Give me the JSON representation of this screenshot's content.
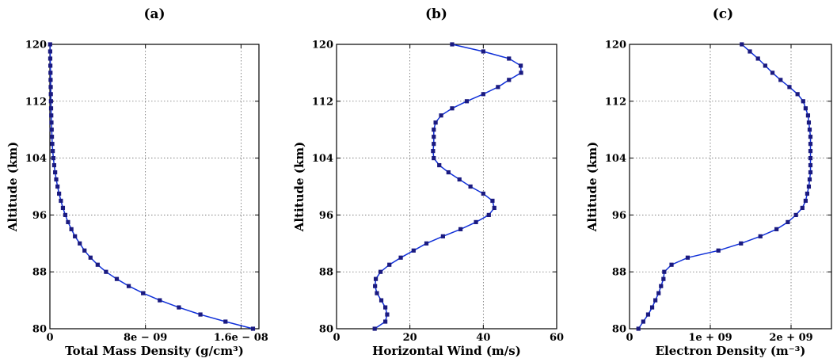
{
  "chart_data": [
    {
      "type": "line",
      "title": "(a)",
      "xlabel": "Total Mass Density (g/cm³)",
      "ylabel": "Altitude (km)",
      "xlim": [
        0,
        1.75e-08
      ],
      "ylim": [
        80,
        120
      ],
      "xticks": [
        0,
        8e-09,
        1.6e-08
      ],
      "xtick_labels": [
        "0",
        "8e − 09",
        "1.6e − 08"
      ],
      "yticks": [
        80,
        88,
        96,
        104,
        112,
        120
      ],
      "ytick_labels": [
        "80",
        "88",
        "96",
        "104",
        "112",
        "120"
      ],
      "grid": true,
      "series": [
        {
          "y": [
            80,
            81,
            82,
            83,
            84,
            85,
            86,
            87,
            88,
            89,
            90,
            91,
            92,
            93,
            94,
            95,
            96,
            97,
            98,
            99,
            100,
            101,
            102,
            103,
            104,
            105,
            106,
            107,
            108,
            109,
            110,
            111,
            112,
            113,
            114,
            115,
            116,
            117,
            118,
            119,
            120
          ],
          "x": [
            1.7e-08,
            1.47e-08,
            1.26e-08,
            1.08e-08,
            9.2e-09,
            7.8e-09,
            6.6e-09,
            5.6e-09,
            4.7e-09,
            4e-09,
            3.4e-09,
            2.9e-09,
            2.5e-09,
            2.1e-09,
            1.8e-09,
            1.52e-09,
            1.29e-09,
            1.09e-09,
            9.2e-10,
            7.7e-10,
            6.4e-10,
            5.3e-10,
            4.4e-10,
            3.6e-10,
            2.9e-10,
            2.4e-10,
            2e-10,
            1.7e-10,
            1.5e-10,
            1.3e-10,
            1.15e-10,
            1e-10,
            9e-11,
            8e-11,
            7e-11,
            6e-11,
            5e-11,
            4e-11,
            3e-11,
            2.5e-11,
            2e-11
          ]
        }
      ]
    },
    {
      "type": "line",
      "title": "(b)",
      "xlabel": "Horizontal Wind (m/s)",
      "ylabel": "Altitude (km)",
      "xlim": [
        0,
        60
      ],
      "ylim": [
        80,
        120
      ],
      "xticks": [
        0,
        20,
        40,
        60
      ],
      "xtick_labels": [
        "0",
        "20",
        "40",
        "60"
      ],
      "yticks": [
        80,
        88,
        96,
        104,
        112,
        120
      ],
      "ytick_labels": [
        "80",
        "88",
        "96",
        "104",
        "112",
        "120"
      ],
      "grid": true,
      "series": [
        {
          "y": [
            80,
            81,
            82,
            83,
            84,
            85,
            86,
            87,
            88,
            89,
            90,
            91,
            92,
            93,
            94,
            95,
            96,
            97,
            98,
            99,
            100,
            101,
            102,
            103,
            104,
            105,
            106,
            107,
            108,
            109,
            110,
            111,
            112,
            113,
            114,
            115,
            116,
            117,
            118,
            119,
            120
          ],
          "x": [
            10.4,
            13.3,
            13.8,
            13.3,
            12.2,
            11.0,
            10.5,
            10.7,
            12.0,
            14.4,
            17.5,
            21.0,
            24.5,
            29.0,
            33.8,
            38.0,
            41.5,
            43.0,
            42.5,
            40.0,
            36.5,
            33.5,
            30.5,
            28.0,
            26.5,
            26.3,
            26.5,
            26.5,
            26.5,
            27.0,
            28.5,
            31.5,
            35.5,
            40.0,
            44.0,
            47.0,
            50.3,
            50.2,
            47.0,
            40.0,
            31.5
          ]
        }
      ]
    },
    {
      "type": "line",
      "title": "(c)",
      "xlabel": "Electron Density (m⁻³)",
      "ylabel": "Altitude (km)",
      "xlim": [
        0,
        2500000000.0
      ],
      "ylim": [
        80,
        120
      ],
      "xticks": [
        0,
        1000000000.0,
        2000000000.0
      ],
      "xtick_labels": [
        "0",
        "1e + 09",
        "2e + 09"
      ],
      "yticks": [
        80,
        88,
        96,
        104,
        112,
        120
      ],
      "ytick_labels": [
        "80",
        "88",
        "96",
        "104",
        "112",
        "120"
      ],
      "grid": true,
      "series": [
        {
          "y": [
            80,
            81,
            82,
            83,
            84,
            85,
            86,
            87,
            88,
            89,
            90,
            91,
            92,
            93,
            94,
            95,
            96,
            97,
            98,
            99,
            100,
            101,
            102,
            103,
            104,
            105,
            106,
            107,
            108,
            109,
            110,
            111,
            112,
            113,
            114,
            115,
            116,
            117,
            118,
            119,
            120
          ],
          "x": [
            110000000.0,
            170000000.0,
            230000000.0,
            280000000.0,
            320000000.0,
            360000000.0,
            390000000.0,
            420000000.0,
            430000000.0,
            520000000.0,
            720000000.0,
            1100000000.0,
            1380000000.0,
            1620000000.0,
            1820000000.0,
            1960000000.0,
            2060000000.0,
            2140000000.0,
            2180000000.0,
            2200000000.0,
            2220000000.0,
            2230000000.0,
            2240000000.0,
            2240000000.0,
            2240000000.0,
            2240000000.0,
            2240000000.0,
            2240000000.0,
            2230000000.0,
            2220000000.0,
            2210000000.0,
            2180000000.0,
            2150000000.0,
            2080000000.0,
            1980000000.0,
            1870000000.0,
            1770000000.0,
            1680000000.0,
            1590000000.0,
            1490000000.0,
            1390000000.0
          ]
        }
      ]
    }
  ]
}
